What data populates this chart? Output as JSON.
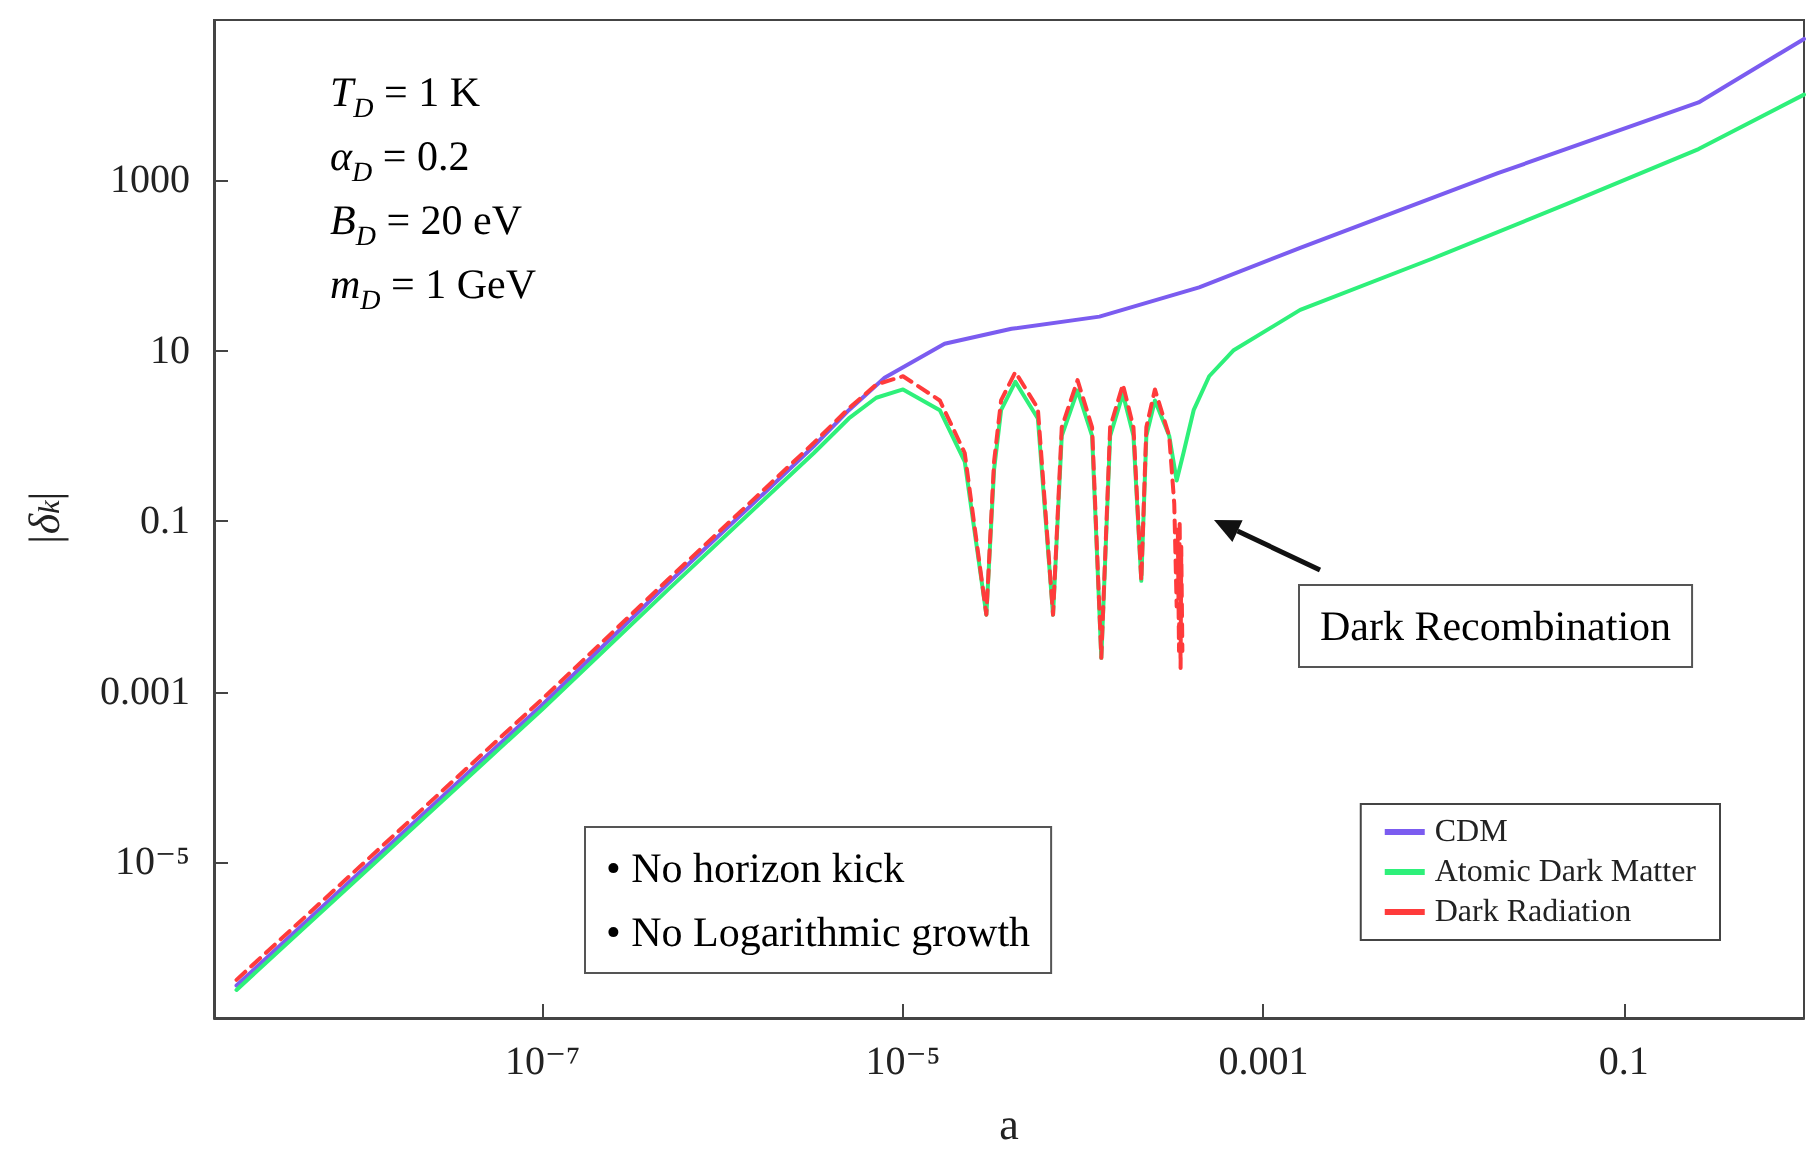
{
  "chart_data": {
    "type": "line",
    "xlabel": "a",
    "ylabel": "|δ$_{k}$|",
    "log": "xy",
    "xlim": [
      1.5e-09,
      1
    ],
    "ylim": [
      1.5e-07,
      75000
    ],
    "xticks": [
      {
        "value": 1e-07,
        "label": "10⁻⁷"
      },
      {
        "value": 1e-05,
        "label": "10⁻⁵"
      },
      0.001,
      0.1
    ],
    "yticks": [
      {
        "value": 1e-05,
        "label": "10⁻⁵"
      },
      0.001,
      0.1,
      10,
      1000
    ],
    "grid": false,
    "legend": "bottom right",
    "marker": "none",
    "annotations": [
      "T$_{D}$ = 1 K\nα$_{D}$ = 0.2\nB$_{D}$ = 20 eV\nm$_{D}$ = 1 GeV",
      "• No horizon kick\n• No Logarithmic growth",
      "Dark Recombination"
    ],
    "series": [
      {
        "name": "CDM",
        "color": "#7b5cf0",
        "line_style": "solid",
        "x": [
          2e-09,
          1e-07,
          5e-07,
          1.6e-06,
          3.2e-06,
          5e-06,
          7.9e-06,
          1.7e-05,
          4e-05,
          0.000123,
          0.00044,
          0.0016,
          0.02,
          0.26,
          1.0
        ],
        "values": [
          3.6e-07,
          0.00071,
          0.019,
          0.19,
          0.76,
          2.0,
          4.8,
          12,
          18,
          25,
          55,
          160,
          1200,
          8100,
          45000
        ]
      },
      {
        "name": "Atomic Dark Matter",
        "color": "#2ef07a",
        "line_style": "solid",
        "x": [
          2e-09,
          1e-07,
          5e-07,
          1.6e-06,
          3.2e-06,
          5e-06,
          7.1e-06,
          1e-05,
          1.6e-05,
          2.2e-05,
          2.9e-05,
          3.2e-05,
          3.5e-05,
          4.2e-05,
          5.6e-05,
          6.8e-05,
          7.6e-05,
          9.3e-05,
          0.000112,
          0.000126,
          0.000141,
          0.000166,
          0.00019,
          0.00021,
          0.000224,
          0.00025,
          0.0003,
          0.00033,
          0.00036,
          0.00041,
          0.0005,
          0.00068,
          0.0016,
          0.0087,
          0.048,
          0.26,
          1.0
        ],
        "values": [
          3.2e-07,
          0.00063,
          0.016,
          0.16,
          0.63,
          1.6,
          2.8,
          3.5,
          2.0,
          0.5,
          0.008,
          0.4,
          2.0,
          4.3,
          1.6,
          0.008,
          1.0,
          3.4,
          1.0,
          0.0025,
          1.0,
          3.1,
          1.0,
          0.02,
          1.0,
          2.6,
          1.0,
          0.3,
          0.63,
          2.0,
          5.0,
          10,
          30,
          120,
          520,
          2300,
          10000
        ]
      },
      {
        "name": "Dark Radiation",
        "color": "#ff3b3b",
        "line_style": "dashed",
        "x": [
          2e-09,
          1e-07,
          5e-07,
          1.6e-06,
          3.2e-06,
          5e-06,
          7.1e-06,
          1e-05,
          1.6e-05,
          2.2e-05,
          2.9e-05,
          3.2e-05,
          3.5e-05,
          4.2e-05,
          5.6e-05,
          6.8e-05,
          7.6e-05,
          9.3e-05,
          0.000112,
          0.000126,
          0.000141,
          0.000166,
          0.00019,
          0.00021,
          0.000224,
          0.00025,
          0.0003,
          0.00032,
          0.00033,
          0.000335,
          0.00034,
          0.000343,
          0.000347,
          0.00035,
          0.000355
        ],
        "values": [
          4.2e-07,
          0.00083,
          0.021,
          0.21,
          0.83,
          2.1,
          4.0,
          5.0,
          2.6,
          0.63,
          0.008,
          0.5,
          2.6,
          5.6,
          2.1,
          0.008,
          1.26,
          4.5,
          1.26,
          0.0025,
          1.26,
          4.0,
          1.26,
          0.02,
          1.26,
          3.5,
          1.0,
          0.16,
          0.01,
          0.08,
          0.003,
          0.1,
          0.0019,
          0.05,
          0.003
        ]
      }
    ]
  }
}
